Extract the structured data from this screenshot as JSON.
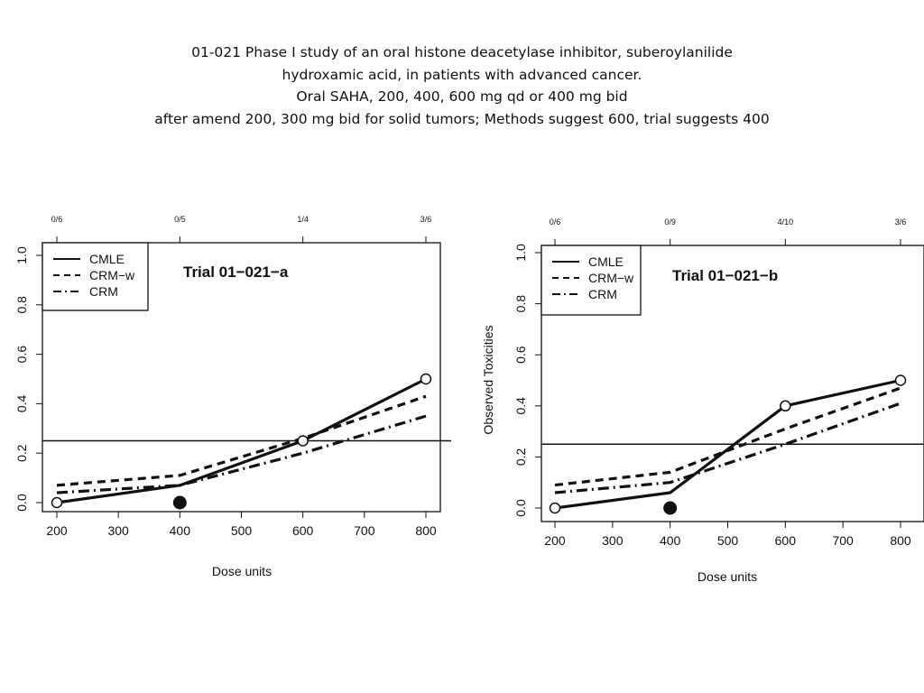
{
  "slide": {
    "title_lines": [
      "01-021 Phase I study of an oral histone deacetylase inhibitor, suberoylanilide",
      "hydroxamic acid, in patients with advanced cancer.",
      "Oral SAHA, 200, 400, 600 mg qd or 400 mg bid",
      "after amend 200, 300 mg bid for solid tumors; Methods suggest 600, trial suggests 400"
    ]
  },
  "chart_data": [
    {
      "type": "line",
      "title": "Trial 01−021−a",
      "xlabel": "Dose units",
      "ylabel": "",
      "xlim": [
        200,
        800
      ],
      "ylim": [
        0,
        1.0
      ],
      "x_ticks": [
        200,
        300,
        400,
        500,
        600,
        700,
        800
      ],
      "x_tick_labels": [
        "200",
        "300",
        "400",
        "500",
        "600",
        "700",
        "800"
      ],
      "y_ticks": [
        0,
        0.2,
        0.4,
        0.6,
        0.8,
        1.0
      ],
      "y_tick_labels": [
        "0.0",
        "0.2",
        "0.4",
        "0.6",
        "0.8",
        "1.0"
      ],
      "top_axis": {
        "x": [
          200,
          400,
          600,
          800
        ],
        "labels": [
          "0/6",
          "0/5",
          "1/4",
          "3/6"
        ]
      },
      "reference_line": 0.25,
      "legend": {
        "position": "top-left",
        "entries": [
          "CMLE",
          "CRM−w",
          "CRM"
        ]
      },
      "series": [
        {
          "name": "CMLE",
          "style": "solid",
          "x": [
            200,
            400,
            600,
            800
          ],
          "values": [
            0.0,
            0.07,
            0.25,
            0.5
          ]
        },
        {
          "name": "CRM−w",
          "style": "dashed",
          "x": [
            200,
            400,
            600,
            800
          ],
          "values": [
            0.07,
            0.11,
            0.26,
            0.43
          ]
        },
        {
          "name": "CRM",
          "style": "dashdot",
          "x": [
            200,
            400,
            600,
            800
          ],
          "values": [
            0.04,
            0.07,
            0.2,
            0.35
          ]
        }
      ],
      "open_markers": {
        "x": [
          200,
          600,
          800
        ],
        "values": [
          0.0,
          0.25,
          0.5
        ]
      },
      "filled_markers": {
        "x": [
          400
        ],
        "values": [
          0.0
        ]
      }
    },
    {
      "type": "line",
      "title": "Trial 01−021−b",
      "xlabel": "Dose units",
      "ylabel": "Observed Toxicities",
      "xlim": [
        200,
        800
      ],
      "ylim": [
        0,
        1.0
      ],
      "x_ticks": [
        200,
        300,
        400,
        500,
        600,
        700,
        800
      ],
      "x_tick_labels": [
        "200",
        "300",
        "400",
        "500",
        "600",
        "700",
        "800"
      ],
      "y_ticks": [
        0,
        0.2,
        0.4,
        0.6,
        0.8,
        1.0
      ],
      "y_tick_labels": [
        "0.0",
        "0.2",
        "0.4",
        "0.6",
        "0.8",
        "1.0"
      ],
      "top_axis": {
        "x": [
          200,
          400,
          600,
          800
        ],
        "labels": [
          "0/6",
          "0/9",
          "4/10",
          "3/6"
        ]
      },
      "reference_line": 0.25,
      "legend": {
        "position": "top-left",
        "entries": [
          "CMLE",
          "CRM−w",
          "CRM"
        ]
      },
      "series": [
        {
          "name": "CMLE",
          "style": "solid",
          "x": [
            200,
            400,
            600,
            800
          ],
          "values": [
            0.0,
            0.06,
            0.4,
            0.5
          ]
        },
        {
          "name": "CRM−w",
          "style": "dashed",
          "x": [
            200,
            400,
            600,
            800
          ],
          "values": [
            0.09,
            0.14,
            0.31,
            0.47
          ]
        },
        {
          "name": "CRM",
          "style": "dashdot",
          "x": [
            200,
            400,
            600,
            800
          ],
          "values": [
            0.06,
            0.1,
            0.25,
            0.41
          ]
        }
      ],
      "open_markers": {
        "x": [
          200,
          600,
          800
        ],
        "values": [
          0.0,
          0.4,
          0.5
        ]
      },
      "filled_markers": {
        "x": [
          400
        ],
        "values": [
          0.0
        ]
      }
    }
  ]
}
